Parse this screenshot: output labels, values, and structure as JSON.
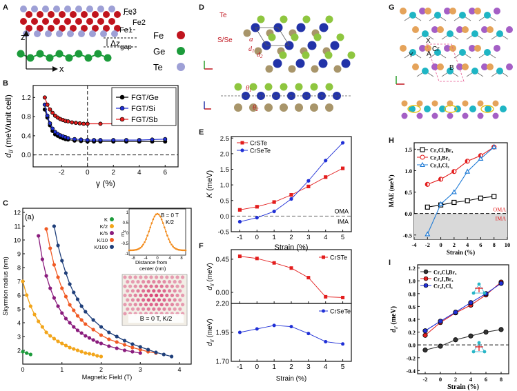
{
  "figure": {
    "panel_letters": [
      "A",
      "B",
      "C",
      "D",
      "E",
      "F",
      "G",
      "H",
      "I"
    ],
    "A": {
      "labels": {
        "fe3": "Fe3",
        "fe2": "Fe2",
        "fe1": "Fe1",
        "gap": "Δz",
        "gap_sub": "gap",
        "z": "z",
        "x": "x"
      },
      "legend": [
        {
          "label": "Fe",
          "color": "#c0141e"
        },
        {
          "label": "Ge",
          "color": "#1c9b3b"
        },
        {
          "label": "Te",
          "color": "#9ea0d6"
        }
      ]
    },
    "C_inset": {
      "label_a": "(a)",
      "b_field": "B = 0 T",
      "k2": "K/2",
      "xlabel": "Distance from",
      "xlabel2": "center (nm)",
      "ylabel": "m",
      "ylabel_sub": "z",
      "map_label": "B = 0 T, K/2",
      "xticks": [
        "-8",
        "-4",
        "0",
        "4",
        "8"
      ],
      "yticks": [
        "1",
        "0.5",
        "0",
        "-0.5",
        "-1"
      ]
    },
    "D": {
      "te": "Te",
      "ssc": "S/Se",
      "a": "a",
      "d1": "d",
      "d2": "d",
      "theta1": "θ",
      "theta2": "θ"
    },
    "E_axis": {
      "oma": "OMA",
      "ima": "IMA"
    },
    "G": {
      "x": "X",
      "y": "Y",
      "a": "A",
      "cr": "Cr",
      "b": "B"
    },
    "H_axis": {
      "oma": "OMA",
      "ima": "IMA"
    }
  },
  "chart_data": [
    {
      "panel": "B",
      "type": "line",
      "title": "",
      "xlabel": "γ (%)",
      "ylabel": "d",
      "ylabel_sub": "//",
      "ylabel_unit": " (meV/unit cell)",
      "xlim": [
        -4.2,
        7
      ],
      "ylim": [
        -0.25,
        1.45
      ],
      "xticks": [
        "-2",
        "0",
        "2",
        "4",
        "6"
      ],
      "yticks": [
        "1.2",
        "0.8",
        "0.4",
        "0.0"
      ],
      "series": [
        {
          "name": "FGT/Ge",
          "color": "#000000",
          "x": [
            -3.3,
            -3.1,
            -2.9,
            -2.7,
            -2.5,
            -2.3,
            -2.1,
            -1.9,
            -1.7,
            -1.5,
            -1,
            -0.5,
            0,
            0.5,
            1,
            2,
            3,
            4,
            5,
            6
          ],
          "values": [
            0.95,
            0.78,
            0.62,
            0.5,
            0.43,
            0.4,
            0.37,
            0.35,
            0.33,
            0.32,
            0.3,
            0.29,
            0.28,
            0.28,
            0.28,
            0.28,
            0.28,
            0.28,
            0.28,
            0.28
          ]
        },
        {
          "name": "FGT/Si",
          "color": "#1f2fd6",
          "x": [
            -3.3,
            -3.1,
            -2.9,
            -2.7,
            -2.5,
            -2.3,
            -2.1,
            -1.9,
            -1.7,
            -1.5,
            -1,
            -0.5,
            0,
            0.5,
            1,
            2,
            3,
            4,
            5,
            6
          ],
          "values": [
            1.05,
            0.82,
            0.66,
            0.55,
            0.48,
            0.44,
            0.41,
            0.39,
            0.37,
            0.35,
            0.33,
            0.32,
            0.31,
            0.31,
            0.31,
            0.31,
            0.31,
            0.31,
            0.32,
            0.33
          ]
        },
        {
          "name": "FGT/Sb",
          "color": "#e31d1d",
          "x": [
            -3.3,
            -3.1,
            -2.9,
            -2.7,
            -2.5,
            -2.3,
            -2.1,
            -1.9,
            -1.7,
            -1.5,
            -1.2,
            -0.9,
            -0.6,
            -0.3,
            0,
            1,
            2,
            3,
            4,
            5,
            6
          ],
          "values": [
            1.2,
            1.05,
            0.95,
            0.88,
            0.82,
            0.78,
            0.75,
            0.73,
            0.71,
            0.7,
            0.68,
            0.67,
            0.66,
            0.65,
            0.65,
            0.65,
            0.65,
            0.65,
            0.65,
            0.65,
            0.66
          ]
        }
      ]
    },
    {
      "panel": "C",
      "type": "line",
      "title": "",
      "xlabel": "Magnetic Field (T)",
      "ylabel": "Skyrmion radius (nm)",
      "xlim": [
        0,
        4.3
      ],
      "ylim": [
        1,
        12.3
      ],
      "xticks": [
        "0",
        "1",
        "2",
        "3",
        "4"
      ],
      "yticks": [
        "2",
        "3",
        "4",
        "5",
        "6",
        "7",
        "8",
        "9",
        "10",
        "11",
        "12"
      ],
      "series": [
        {
          "name": "K",
          "color": "#1c9b3b",
          "x": [
            0,
            0.1,
            0.2
          ],
          "values": [
            1.9,
            1.8,
            1.7
          ]
        },
        {
          "name": "K/2",
          "color": "#f2a51a",
          "x": [
            0,
            0.1,
            0.2,
            0.3,
            0.4,
            0.5,
            0.6,
            0.7,
            0.8,
            0.9,
            1.0,
            1.1,
            1.2,
            1.3,
            1.4,
            1.5,
            1.6,
            1.7,
            1.8,
            1.9,
            2.0
          ],
          "values": [
            7.0,
            6.0,
            5.2,
            4.6,
            4.1,
            3.7,
            3.3,
            3.05,
            2.85,
            2.65,
            2.5,
            2.35,
            2.2,
            2.1,
            2.0,
            1.9,
            1.8,
            1.75,
            1.7,
            1.6,
            1.55
          ]
        },
        {
          "name": "K/5",
          "color": "#8a1c7d",
          "x": [
            0.4,
            0.5,
            0.6,
            0.7,
            0.8,
            0.9,
            1.0,
            1.1,
            1.2,
            1.3,
            1.4,
            1.5,
            1.6,
            1.7,
            1.8,
            1.9,
            2.0,
            2.2,
            2.4,
            2.6,
            2.8,
            3.0
          ],
          "values": [
            10.3,
            8.6,
            7.4,
            6.5,
            5.8,
            5.2,
            4.7,
            4.3,
            4.0,
            3.7,
            3.45,
            3.25,
            3.05,
            2.9,
            2.75,
            2.6,
            2.5,
            2.3,
            2.15,
            2.0,
            1.9,
            1.8
          ]
        },
        {
          "name": "K/10",
          "color": "#f05a24",
          "x": [
            0.6,
            0.7,
            0.8,
            0.9,
            1.0,
            1.1,
            1.2,
            1.3,
            1.4,
            1.5,
            1.6,
            1.8,
            2.0,
            2.2,
            2.4,
            2.6,
            2.8,
            3.0,
            3.2,
            3.4
          ],
          "values": [
            10.8,
            9.4,
            8.2,
            7.3,
            6.5,
            5.9,
            5.3,
            4.9,
            4.5,
            4.2,
            3.9,
            3.5,
            3.1,
            2.8,
            2.6,
            2.4,
            2.2,
            2.05,
            1.9,
            1.8
          ]
        },
        {
          "name": "K/100",
          "color": "#1f3f7a",
          "x": [
            0.8,
            0.9,
            1.0,
            1.1,
            1.2,
            1.3,
            1.4,
            1.5,
            1.6,
            1.8,
            2.0,
            2.2,
            2.4,
            2.6,
            2.8,
            3.0,
            3.2,
            3.4,
            3.6,
            3.8
          ],
          "values": [
            11.0,
            9.6,
            8.5,
            7.6,
            6.8,
            6.2,
            5.7,
            5.2,
            4.8,
            4.2,
            3.7,
            3.3,
            3.0,
            2.7,
            2.45,
            2.25,
            2.05,
            1.85,
            1.7,
            1.55
          ]
        }
      ]
    },
    {
      "panel": "E",
      "type": "line",
      "title": "",
      "xlabel": "Strain (%)",
      "ylabel": "K",
      "ylabel_unit": " (meV)",
      "xlim": [
        -1.5,
        5.5
      ],
      "ylim": [
        -0.5,
        2.55
      ],
      "categories": [
        "-1",
        "0",
        "1",
        "2",
        "3",
        "4",
        "5"
      ],
      "yticks": [
        "2.5",
        "2.0",
        "1.5",
        "1.0",
        "0.5",
        "0.0",
        "-0.5"
      ],
      "series": [
        {
          "name": "CrSTe",
          "color": "#e31d1d",
          "values": [
            0.2,
            0.3,
            0.45,
            0.68,
            0.95,
            1.25,
            1.53
          ]
        },
        {
          "name": "CrSeTe",
          "color": "#1f2fd6",
          "values": [
            -0.18,
            -0.05,
            0.15,
            0.55,
            1.13,
            1.78,
            2.35
          ]
        }
      ]
    },
    {
      "panel": "F_top",
      "type": "line",
      "title": "",
      "xlabel": "",
      "ylabel": "d",
      "ylabel_sub": "//",
      "ylabel_unit": " (meV)",
      "xlim": [
        -1.5,
        5.5
      ],
      "ylim": [
        -0.15,
        0.58
      ],
      "categories": [
        "-1",
        "0",
        "1",
        "2",
        "3",
        "4",
        "5"
      ],
      "yticks": [
        "0.45",
        "0.00"
      ],
      "series": [
        {
          "name": "CrSTe",
          "color": "#e31d1d",
          "values": [
            0.49,
            0.46,
            0.4,
            0.33,
            0.2,
            -0.06,
            -0.07
          ]
        }
      ]
    },
    {
      "panel": "F_bottom",
      "type": "line",
      "title": "",
      "xlabel": "Strain (%)",
      "ylabel": "d",
      "ylabel_sub": "//",
      "ylabel_unit": " (meV)",
      "xlim": [
        -1.5,
        5.5
      ],
      "ylim": [
        1.7,
        2.2
      ],
      "categories": [
        "-1",
        "0",
        "1",
        "2",
        "3",
        "4",
        "5"
      ],
      "yticks": [
        "2.20",
        "1.95",
        "1.70"
      ],
      "series": [
        {
          "name": "CrSeTe",
          "color": "#1f2fd6",
          "values": [
            1.95,
            1.98,
            2.01,
            2.0,
            1.94,
            1.87,
            1.85
          ]
        }
      ]
    },
    {
      "panel": "H",
      "type": "line",
      "title": "",
      "xlabel": "Strain (%)",
      "ylabel": "MAE (meV)",
      "xlim": [
        -4,
        10
      ],
      "ylim": [
        -0.6,
        1.65
      ],
      "xticks": [
        "-4",
        "-2",
        "0",
        "2",
        "4",
        "6",
        "8",
        "10"
      ],
      "yticks": [
        "1.5",
        "1.0",
        "0.5",
        "0.0",
        "-0.5"
      ],
      "series": [
        {
          "name": "Cr₂Cl₃Br₃",
          "color": "#000000",
          "x": [
            -2,
            0,
            2,
            4,
            6,
            8
          ],
          "values": [
            0.15,
            0.2,
            0.26,
            0.3,
            0.36,
            0.4
          ]
        },
        {
          "name": "Cr₂I₃Br₃",
          "color": "#e31d1d",
          "x": [
            -2,
            0,
            2,
            4,
            6,
            8
          ],
          "values": [
            0.68,
            0.8,
            0.98,
            1.22,
            1.35,
            1.55
          ]
        },
        {
          "name": "Cr₂I₃Cl₃",
          "color": "#1f7bd6",
          "x": [
            -2,
            0,
            2,
            4,
            6,
            8
          ],
          "values": [
            -0.48,
            0.22,
            0.5,
            0.98,
            1.28,
            1.55
          ]
        }
      ]
    },
    {
      "panel": "I",
      "type": "line",
      "title": "",
      "xlabel": "Strain (%)",
      "ylabel": "d",
      "ylabel_sub": "//",
      "ylabel_unit": " (meV)",
      "xlim": [
        -3,
        9
      ],
      "ylim": [
        -0.45,
        1.25
      ],
      "xticks": [
        "-2",
        "0",
        "2",
        "4",
        "6",
        "8"
      ],
      "yticks": [
        "1.2",
        "1.0",
        "0.8",
        "0.6",
        "0.4",
        "0.2",
        "0.0",
        "-0.2",
        "-0.4"
      ],
      "series": [
        {
          "name": "Cr₂Cl₃Br₃",
          "color": "#333333",
          "x": [
            -2,
            0,
            2,
            4,
            6,
            8
          ],
          "values": [
            -0.08,
            -0.02,
            0.08,
            0.14,
            0.2,
            0.24
          ]
        },
        {
          "name": "Cr₂I₃Br₃",
          "color": "#e31d1d",
          "x": [
            -2,
            0,
            2,
            4,
            6,
            8
          ],
          "values": [
            0.15,
            0.35,
            0.5,
            0.62,
            0.78,
            0.98
          ]
        },
        {
          "name": "Cr₂I₃Cl₃",
          "color": "#1f2fd6",
          "x": [
            -2,
            0,
            2,
            4,
            6,
            8
          ],
          "values": [
            0.22,
            0.37,
            0.51,
            0.66,
            0.8,
            0.96
          ]
        }
      ]
    }
  ]
}
